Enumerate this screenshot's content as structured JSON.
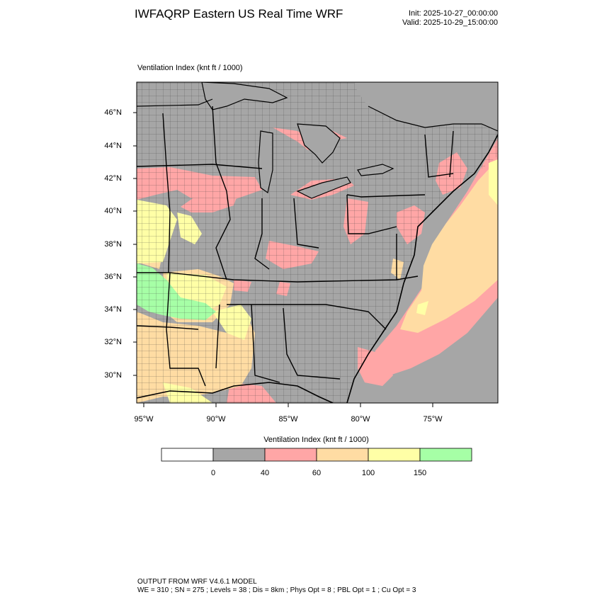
{
  "header": {
    "title": "IWFAQRP Eastern US Real Time WRF",
    "init": "Init: 2025-10-27_00:00:00",
    "valid": "Valid: 2025-10-29_15:00:00"
  },
  "map": {
    "field_label": "Ventilation Index   (knt ft / 1000)",
    "lat_labels": [
      "46°N",
      "44°N",
      "42°N",
      "40°N",
      "38°N",
      "36°N",
      "34°N",
      "32°N",
      "30°N"
    ],
    "lon_labels": [
      "95°W",
      "90°W",
      "85°W",
      "80°W",
      "75°W"
    ]
  },
  "colorbar": {
    "title": "Ventilation Index  (knt ft / 1000)",
    "ticks": [
      "0",
      "40",
      "60",
      "100",
      "150"
    ],
    "colors": [
      "#ffffff",
      "#a6a6a6",
      "#ffa6a6",
      "#ffdca3",
      "#ffffa6",
      "#a6ffa6"
    ]
  },
  "footer": {
    "line1": "OUTPUT FROM WRF V4.6.1 MODEL",
    "line2": "WE = 310 ; SN = 275 ; Levels = 38 ; Dis = 8km ; Phys Opt = 8 ; PBL Opt = 1 ; Cu Opt = 3"
  }
}
